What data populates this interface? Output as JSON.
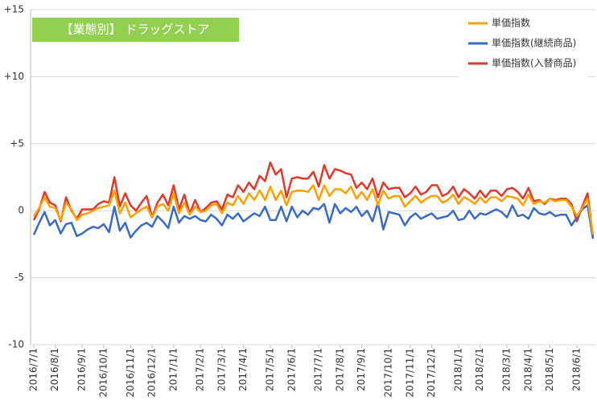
{
  "chart_data": {
    "type": "line",
    "title": "【業態別】 ドラッグストア",
    "categories": [
      "2016/7/1",
      null,
      null,
      null,
      "2016/8/1",
      null,
      null,
      null,
      null,
      "2016/9/1",
      null,
      null,
      null,
      "2016/10/1",
      null,
      null,
      null,
      null,
      "2016/11/1",
      null,
      null,
      null,
      "2016/12/1",
      null,
      null,
      null,
      "2017/1/1",
      null,
      null,
      null,
      null,
      "2017/2/1",
      null,
      null,
      null,
      "2017/3/1",
      null,
      null,
      null,
      "2017/4/1",
      null,
      null,
      null,
      null,
      "2017/5/1",
      null,
      null,
      null,
      "2017/6/1",
      null,
      null,
      null,
      null,
      "2017/7/1",
      null,
      null,
      null,
      "2017/8/1",
      null,
      null,
      null,
      "2017/9/1",
      null,
      null,
      null,
      null,
      "2017/10/1",
      null,
      null,
      null,
      "2017/11/1",
      null,
      null,
      null,
      "2017/12/1",
      null,
      null,
      null,
      null,
      "2018/1/1",
      null,
      null,
      null,
      "2018/2/1",
      null,
      null,
      null,
      null,
      "2018/3/1",
      null,
      null,
      null,
      "2018/4/1",
      null,
      null,
      null,
      "2018/5/1",
      null,
      null,
      null,
      null,
      "2018/6/1",
      null,
      null,
      null
    ],
    "series": [
      {
        "name": "単価指数",
        "color": "#ffa000",
        "values": [
          -0.4,
          0.2,
          1.0,
          0.3,
          0.2,
          -0.7,
          0.6,
          0.1,
          -0.7,
          -0.3,
          -0.2,
          0.0,
          0.2,
          0.3,
          0.4,
          1.5,
          -0.2,
          0.6,
          -0.5,
          -0.2,
          0.1,
          0.3,
          -0.5,
          0.3,
          0.5,
          0.0,
          1.3,
          -0.2,
          0.6,
          -0.3,
          0.3,
          -0.1,
          0.0,
          0.4,
          0.5,
          -0.2,
          0.6,
          0.4,
          1.1,
          0.5,
          1.3,
          0.8,
          1.5,
          0.8,
          1.8,
          0.8,
          1.5,
          0.4,
          1.4,
          1.5,
          1.5,
          1.4,
          1.9,
          0.8,
          1.9,
          1.1,
          1.6,
          1.6,
          1.3,
          1.8,
          0.9,
          1.4,
          0.8,
          1.6,
          0.4,
          1.5,
          0.9,
          1.1,
          1.1,
          0.3,
          0.7,
          1.1,
          0.6,
          0.9,
          1.1,
          1.1,
          0.6,
          0.8,
          1.2,
          0.5,
          1.0,
          0.8,
          0.5,
          1.0,
          0.6,
          1.0,
          1.0,
          0.7,
          1.1,
          1.0,
          0.9,
          0.4,
          1.2,
          0.5,
          0.7,
          0.6,
          0.9,
          0.7,
          0.8,
          0.8,
          0.3,
          -0.4,
          0.2,
          0.9,
          -1.8
        ]
      },
      {
        "name": "単価指数(継続商品)",
        "color": "#3a6bc4",
        "values": [
          -1.8,
          -0.9,
          -0.1,
          -1.1,
          -0.7,
          -1.7,
          -1.0,
          -0.9,
          -1.9,
          -1.7,
          -1.4,
          -1.2,
          -1.3,
          -1.0,
          -1.6,
          0.3,
          -1.5,
          -0.9,
          -2.0,
          -1.5,
          -1.1,
          -0.9,
          -1.2,
          -0.4,
          -0.8,
          -1.3,
          0.3,
          -0.9,
          -0.4,
          -0.6,
          -0.4,
          -0.7,
          -0.8,
          -0.3,
          -0.6,
          -1.1,
          -0.3,
          -0.6,
          -0.2,
          -0.8,
          -0.5,
          -0.2,
          -0.4,
          0.3,
          -0.7,
          -0.7,
          0.3,
          -0.8,
          0.3,
          -0.5,
          0.0,
          -0.3,
          0.2,
          0.1,
          0.5,
          -0.9,
          0.5,
          -0.2,
          0.2,
          -0.1,
          0.3,
          -0.4,
          0.0,
          -0.8,
          0.6,
          -1.4,
          -0.1,
          -0.2,
          -0.3,
          -1.1,
          -0.5,
          -0.2,
          -0.6,
          -0.4,
          -0.2,
          -0.6,
          -0.5,
          -0.4,
          0.0,
          -0.7,
          -0.6,
          0.0,
          -0.6,
          -0.2,
          -0.3,
          -0.1,
          0.1,
          -0.1,
          -0.5,
          0.4,
          -0.4,
          -0.3,
          -0.6,
          0.2,
          -0.2,
          -0.3,
          -0.1,
          -0.4,
          -0.3,
          -0.3,
          -1.1,
          -0.5,
          0.1,
          0.4,
          -2.1
        ]
      },
      {
        "name": "単価指数(入替商品)",
        "color": "#e0392b",
        "values": [
          -0.7,
          0.1,
          1.4,
          0.6,
          0.4,
          -0.8,
          1.0,
          0.0,
          -0.6,
          0.1,
          0.1,
          0.1,
          0.5,
          0.7,
          0.6,
          2.5,
          0.3,
          1.3,
          0.4,
          0.0,
          0.6,
          1.1,
          -0.5,
          0.6,
          1.2,
          0.4,
          1.9,
          0.1,
          1.2,
          -0.2,
          0.8,
          -0.1,
          0.2,
          0.6,
          0.7,
          0.1,
          1.2,
          1.0,
          1.9,
          1.4,
          2.1,
          1.6,
          2.6,
          2.2,
          3.6,
          2.7,
          3.1,
          1.0,
          2.4,
          2.5,
          2.4,
          2.4,
          2.9,
          1.8,
          3.4,
          2.4,
          3.1,
          3.0,
          2.8,
          2.7,
          1.7,
          2.1,
          1.6,
          2.4,
          1.0,
          2.1,
          1.6,
          1.7,
          1.7,
          1.0,
          1.3,
          1.8,
          1.2,
          1.4,
          1.9,
          1.9,
          1.1,
          1.3,
          1.8,
          1.0,
          1.6,
          1.3,
          0.9,
          1.5,
          1.0,
          1.5,
          1.5,
          1.1,
          1.6,
          1.7,
          1.4,
          0.9,
          1.7,
          0.7,
          0.8,
          0.5,
          0.9,
          0.8,
          0.9,
          0.9,
          0.5,
          -0.8,
          0.3,
          1.3,
          -2.0
        ]
      }
    ],
    "ylim": [
      -10,
      15
    ],
    "yticks": [
      {
        "value": 15,
        "label": "+15"
      },
      {
        "value": 10,
        "label": "+10"
      },
      {
        "value": 5,
        "label": "+5"
      },
      0,
      -5,
      -10
    ],
    "grid": true
  }
}
